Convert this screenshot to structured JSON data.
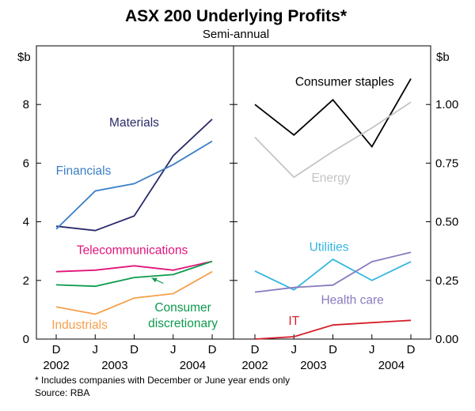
{
  "chart_data": {
    "type": "line",
    "title": "ASX 200 Underlying Profits*",
    "subtitle": "Semi-annual",
    "x": [
      "D",
      "J",
      "D",
      "J",
      "D"
    ],
    "x_years": [
      {
        "label": "2002",
        "at": 0
      },
      {
        "label": "2003",
        "at": 1.5
      },
      {
        "label": "2004",
        "at": 3.5
      }
    ],
    "footnote": "*   Includes companies with December or June year ends only",
    "source": "Source: RBA",
    "panels": [
      {
        "id": "left",
        "ylabel": "$b",
        "ylim": [
          0,
          10
        ],
        "yticks": [
          0,
          2,
          4,
          6,
          8
        ],
        "ytick_labels": [
          "0",
          "2",
          "4",
          "6",
          "8"
        ],
        "series": [
          {
            "name": "Materials",
            "color": "#2b2b6b",
            "values": [
              3.85,
              3.7,
              4.2,
              6.25,
              7.5
            ],
            "label_pos": {
              "x": 2.0,
              "y": 7.25
            },
            "label_anchor": "middle"
          },
          {
            "name": "Financials",
            "color": "#3b7fc4",
            "values": [
              3.75,
              5.05,
              5.3,
              5.95,
              6.75
            ],
            "label_pos": {
              "x": 0.7,
              "y": 5.6
            },
            "label_anchor": "middle"
          },
          {
            "name": "Telecommunications",
            "color": "#e0147a",
            "values": [
              2.3,
              2.35,
              2.5,
              2.35,
              2.65
            ],
            "label_pos": {
              "x": 1.95,
              "y": 2.9
            },
            "label_anchor": "middle"
          },
          {
            "name": "Consumer discretionary",
            "color": "#0e9a4e",
            "values": [
              1.85,
              1.8,
              2.1,
              2.2,
              2.65
            ],
            "label_lines": [
              "Consumer",
              "discretionary"
            ],
            "label_pos": {
              "x": 3.25,
              "y": 0.95
            },
            "label_anchor": "middle",
            "arrow": {
              "from": {
                "x": 2.75,
                "y": 1.9
              },
              "to": {
                "x": 2.45,
                "y": 2.08
              }
            }
          },
          {
            "name": "Industrials",
            "color": "#f5a04b",
            "values": [
              1.1,
              0.85,
              1.4,
              1.55,
              2.3
            ],
            "label_pos": {
              "x": 0.6,
              "y": 0.35
            },
            "label_anchor": "middle"
          }
        ]
      },
      {
        "id": "right",
        "ylabel": "$b",
        "ylim": [
          0,
          1.25
        ],
        "yticks": [
          0,
          0.25,
          0.5,
          0.75,
          1.0
        ],
        "ytick_labels": [
          "0.00",
          "0.25",
          "0.50",
          "0.75",
          "1.00"
        ],
        "series": [
          {
            "name": "Consumer staples",
            "color": "#000000",
            "values": [
              1.0,
              0.87,
              1.02,
              0.82,
              1.11
            ],
            "label_pos": {
              "x": 2.3,
              "y": 1.08
            },
            "label_anchor": "middle"
          },
          {
            "name": "Energy",
            "color": "#c4c4c4",
            "values": [
              0.86,
              0.69,
              0.8,
              0.9,
              1.01
            ],
            "label_pos": {
              "x": 1.95,
              "y": 0.67
            },
            "label_anchor": "middle"
          },
          {
            "name": "Utilities",
            "color": "#33b6e0",
            "values": [
              0.29,
              0.21,
              0.34,
              0.25,
              0.33
            ],
            "label_pos": {
              "x": 1.9,
              "y": 0.375
            },
            "label_anchor": "middle"
          },
          {
            "name": "Health care",
            "color": "#8a7bbf",
            "values": [
              0.2,
              0.22,
              0.23,
              0.33,
              0.37
            ],
            "label_pos": {
              "x": 2.5,
              "y": 0.15
            },
            "label_anchor": "middle"
          },
          {
            "name": "IT",
            "color": "#d4202c",
            "values": [
              0.0,
              0.01,
              0.06,
              0.07,
              0.08
            ],
            "label_pos": {
              "x": 1.0,
              "y": 0.06
            },
            "label_anchor": "middle"
          }
        ]
      }
    ]
  }
}
